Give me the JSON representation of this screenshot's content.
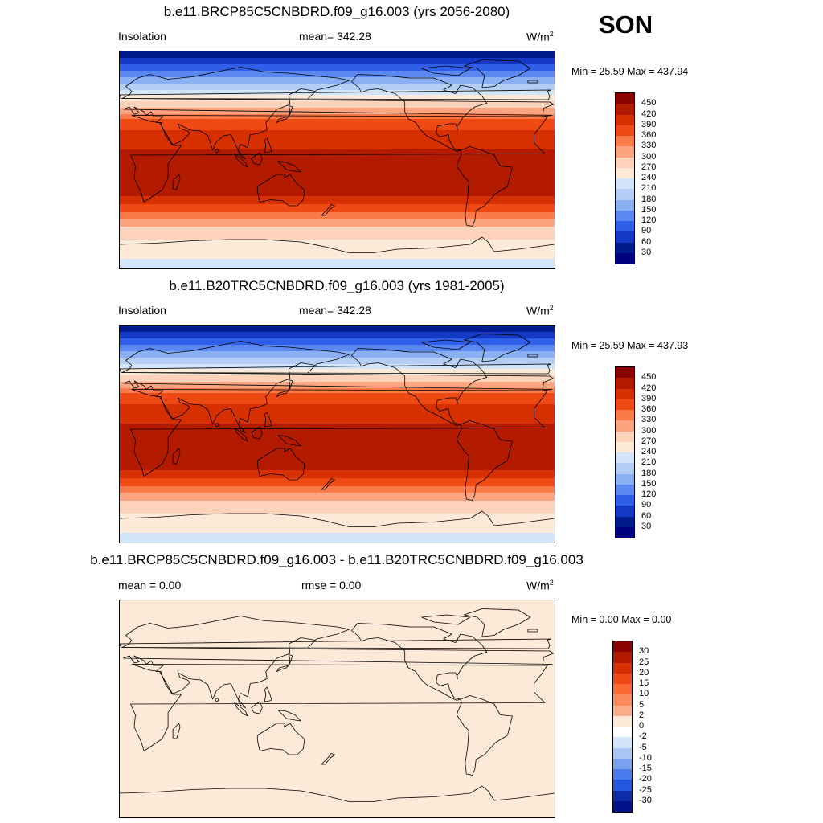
{
  "season": "SON",
  "panels": [
    {
      "title": "b.e11.BRCP85C5CNBDRD.f09_g16.003 (yrs 2056-2080)",
      "left_label": "Insolation",
      "mid_label": "mean= 342.28",
      "units_base": "W/m",
      "units_exp": "2",
      "minmax": "Min =  25.59 Max = 437.94",
      "field": "insolation",
      "colorbar": {
        "labels": [
          "450",
          "420",
          "390",
          "360",
          "330",
          "300",
          "270",
          "240",
          "210",
          "180",
          "150",
          "120",
          "90",
          "60",
          "30"
        ],
        "colors": [
          "#8b0000",
          "#b31b00",
          "#d62f00",
          "#f04a14",
          "#fa7a4a",
          "#fca47f",
          "#fdd2ba",
          "#fde9d7",
          "#d3e5f8",
          "#b3cdf5",
          "#8aaff2",
          "#5a87f0",
          "#2f5ee8",
          "#1439c7",
          "#001c8c",
          "#000080"
        ]
      },
      "insolation_by_latitude": [
        {
          "lat": 90,
          "wm2": 30
        },
        {
          "lat": 60,
          "wm2": 200
        },
        {
          "lat": 30,
          "wm2": 380
        },
        {
          "lat": 0,
          "wm2": 437
        },
        {
          "lat": -30,
          "wm2": 420
        },
        {
          "lat": -60,
          "wm2": 280
        },
        {
          "lat": -90,
          "wm2": 225
        }
      ]
    },
    {
      "title": "b.e11.B20TRC5CNBDRD.f09_g16.003 (yrs 1981-2005)",
      "left_label": "Insolation",
      "mid_label": "mean= 342.28",
      "units_base": "W/m",
      "units_exp": "2",
      "minmax": "Min =  25.59 Max = 437.93",
      "field": "insolation",
      "colorbar": {
        "labels": [
          "450",
          "420",
          "390",
          "360",
          "330",
          "300",
          "270",
          "240",
          "210",
          "180",
          "150",
          "120",
          "90",
          "60",
          "30"
        ],
        "colors": [
          "#8b0000",
          "#b31b00",
          "#d62f00",
          "#f04a14",
          "#fa7a4a",
          "#fca47f",
          "#fdd2ba",
          "#fde9d7",
          "#d3e5f8",
          "#b3cdf5",
          "#8aaff2",
          "#5a87f0",
          "#2f5ee8",
          "#1439c7",
          "#001c8c",
          "#000080"
        ]
      },
      "insolation_by_latitude": [
        {
          "lat": 90,
          "wm2": 30
        },
        {
          "lat": 60,
          "wm2": 200
        },
        {
          "lat": 30,
          "wm2": 380
        },
        {
          "lat": 0,
          "wm2": 437
        },
        {
          "lat": -30,
          "wm2": 420
        },
        {
          "lat": -60,
          "wm2": 280
        },
        {
          "lat": -90,
          "wm2": 225
        }
      ]
    },
    {
      "title": "b.e11.BRCP85C5CNBDRD.f09_g16.003 - b.e11.B20TRC5CNBDRD.f09_g16.003",
      "left_label": "mean =   0.00",
      "mid_label": "rmse =   0.00",
      "units_base": "W/m",
      "units_exp": "2",
      "minmax": "Min =   0.00 Max =   0.00",
      "field": "difference",
      "fill_color": "#fde9d7",
      "colorbar": {
        "labels": [
          "30",
          "25",
          "20",
          "15",
          "10",
          "5",
          "2",
          "0",
          "-2",
          "-5",
          "-10",
          "-15",
          "-20",
          "-25",
          "-30"
        ],
        "colors": [
          "#8b0000",
          "#b31b00",
          "#d62f00",
          "#f04a14",
          "#fa6a32",
          "#fc8a5a",
          "#fcac88",
          "#fde9d7",
          "#ffffff",
          "#d3e5f8",
          "#a8c6f5",
          "#7aa2f0",
          "#4a7cf0",
          "#2456e0",
          "#0d2ea8",
          "#00138a"
        ]
      }
    }
  ]
}
